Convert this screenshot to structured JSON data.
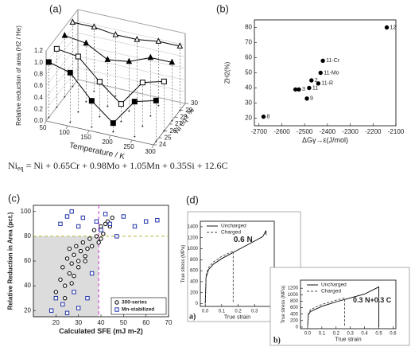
{
  "chart_data": [
    {
      "type": "scatter3d",
      "label": "(a)",
      "ylabel": "Relative reduction of area (H2 / He)",
      "xlabel": "Temperature / K",
      "zlabel": "Ni eq / %",
      "xlim": [
        50,
        300
      ],
      "xticks": [
        50,
        100,
        150,
        200,
        250,
        300
      ],
      "zlim": [
        24,
        30
      ],
      "zticks": [
        24,
        25,
        26,
        27,
        28,
        29,
        30
      ],
      "ylim": [
        0,
        1.2
      ],
      "yticks": [
        {
          "value": 0,
          "label": "0.0"
        },
        0.2,
        0.4,
        0.6,
        0.8,
        {
          "value": 1,
          "label": "1.0"
        },
        1.2
      ],
      "series": [
        {
          "marker": "square",
          "filled": true,
          "color": "#000",
          "x": [
            50,
            100,
            150,
            200,
            250,
            300
          ],
          "z": [
            24.5,
            24.5,
            24.5,
            24.5,
            24.5,
            24.5
          ],
          "values": [
            0.95,
            0.85,
            0.45,
            0.15,
            0.6,
            0.7
          ]
        },
        {
          "marker": "square",
          "filled": false,
          "color": "#000",
          "x": [
            50,
            100,
            150,
            200,
            250,
            300
          ],
          "z": [
            26,
            26,
            26,
            26,
            26,
            26
          ],
          "values": [
            1.0,
            0.95,
            0.6,
            0.3,
            0.75,
            0.85
          ]
        },
        {
          "marker": "triangle",
          "filled": true,
          "color": "#000",
          "x": [
            50,
            100,
            150,
            200,
            250,
            300
          ],
          "z": [
            27.5,
            27.5,
            27.5,
            27.5,
            27.5,
            27.5
          ],
          "values": [
            1.05,
            1.0,
            0.8,
            0.85,
            1.0,
            1.0
          ]
        },
        {
          "marker": "triangle",
          "filled": false,
          "color": "#000",
          "x": [
            50,
            100,
            150,
            200,
            250,
            300
          ],
          "z": [
            29,
            29,
            29,
            29,
            29,
            29
          ],
          "values": [
            1.1,
            1.1,
            1.05,
            1.05,
            1.1,
            1.1
          ]
        }
      ]
    },
    {
      "type": "scatter",
      "label": "(b)",
      "xlabel": "ΔGγ→ε(J/mol)",
      "ylabel": "ZH2(%)",
      "marker": "circle",
      "filled": true,
      "color": "#000",
      "x": [
        -2680,
        -2490,
        -2540,
        -2525,
        -2480,
        -2470,
        -2440,
        -2430,
        -2420,
        -2140
      ],
      "values": [
        21,
        33,
        39,
        39,
        40,
        45,
        43,
        50,
        58,
        80
      ],
      "point_labels": [
        "8",
        "9",
        null,
        "3",
        "11",
        "2",
        "11-R",
        "11-Mo",
        "11-Cr",
        "12"
      ],
      "xlim": [
        -2720,
        -2100
      ],
      "xticks": [
        -2700,
        -2600,
        -2500,
        -2400,
        -2300,
        -2200,
        -2100
      ],
      "ylim": [
        15,
        85
      ],
      "yticks": [
        20,
        30,
        40,
        50,
        60,
        70,
        80
      ]
    },
    {
      "type": "scatter",
      "label": "(c)",
      "xlabel": "Calculated SFE (mJ m-2)",
      "ylabel": "Relative Reduction in Area (pct.)",
      "xlim": [
        10,
        70
      ],
      "xticks": [
        20,
        30,
        40,
        50,
        60,
        70
      ],
      "ylim": [
        15,
        105
      ],
      "yticks": [
        20,
        40,
        60,
        80,
        100
      ],
      "reference_lines": {
        "x": 39,
        "y": 80,
        "x_color": "#cc33cc",
        "y_color": "#b5b53a"
      },
      "shade": "#dcdcdc",
      "legend": "lower right",
      "series": [
        {
          "name": "300-series",
          "marker": "circle",
          "filled": false,
          "color": "#000",
          "x": [
            20,
            22,
            23,
            24,
            25,
            26,
            26,
            27,
            28,
            28,
            29,
            30,
            30,
            31,
            32,
            33,
            34,
            35,
            36,
            37,
            38,
            39,
            40,
            40,
            41,
            42,
            43,
            44,
            45,
            24,
            27,
            33
          ],
          "values": [
            35,
            45,
            55,
            40,
            62,
            50,
            70,
            58,
            65,
            48,
            72,
            60,
            55,
            68,
            75,
            64,
            70,
            78,
            72,
            85,
            80,
            75,
            78,
            88,
            82,
            90,
            92,
            88,
            95,
            30,
            42,
            60
          ]
        },
        {
          "name": "Mn-stabilized",
          "marker": "square",
          "filled": false,
          "color": "#2233aa",
          "x": [
            18,
            20,
            22,
            23,
            25,
            27,
            28,
            30,
            32,
            34,
            36,
            38,
            40,
            42,
            44,
            47,
            50,
            55,
            60,
            65,
            25,
            30
          ],
          "values": [
            20,
            30,
            90,
            25,
            96,
            100,
            35,
            88,
            95,
            30,
            50,
            92,
            85,
            98,
            90,
            80,
            96,
            88,
            92,
            93,
            18,
            22
          ]
        }
      ]
    },
    {
      "type": "line",
      "panel_label": "(d)",
      "sub_label": "a)",
      "annotation": "0.6 N",
      "xlabel": "True strain",
      "ylabel": "True stress (MPa)",
      "legend": "upper left",
      "xlim": [
        -0.03,
        0.42
      ],
      "xticks": [
        {
          "value": 0,
          "label": "0.0"
        },
        0.1,
        0.2,
        0.3
      ],
      "ylim": [
        -50,
        1500
      ],
      "yticks": [
        0,
        200,
        400,
        600,
        800,
        1000,
        1200,
        1400
      ],
      "series": [
        {
          "name": "Uncharged",
          "color": "#000",
          "dash": false,
          "x": [
            0,
            0.005,
            0.02,
            0.05,
            0.1,
            0.15,
            0.2,
            0.25,
            0.3,
            0.35,
            0.37,
            0.37
          ],
          "values": [
            0,
            480,
            620,
            720,
            820,
            900,
            980,
            1060,
            1140,
            1220,
            1330,
            1250
          ]
        },
        {
          "name": "Charged",
          "color": "#444",
          "dash": true,
          "x": [
            0,
            0.005,
            0.02,
            0.05,
            0.1,
            0.15,
            0.17,
            0.17
          ],
          "values": [
            0,
            520,
            660,
            760,
            860,
            930,
            960,
            0
          ]
        }
      ]
    },
    {
      "type": "line",
      "sub_label": "b)",
      "annotation": "0.3 N+0.3 C",
      "xlabel": "True strain",
      "ylabel": "True stress (MPa)",
      "legend": "upper left",
      "xlim": [
        -0.05,
        0.62
      ],
      "xticks": [
        {
          "value": 0,
          "label": "0.0"
        },
        0.1,
        0.2,
        0.3,
        0.4,
        0.5,
        0.6
      ],
      "ylim": [
        -50,
        1450
      ],
      "yticks": [
        0,
        200,
        400,
        600,
        800,
        1000,
        1200
      ],
      "series": [
        {
          "name": "Uncharged",
          "color": "#000",
          "dash": false,
          "x": [
            0,
            0.005,
            0.02,
            0.1,
            0.2,
            0.3,
            0.4,
            0.5,
            0.5
          ],
          "values": [
            0,
            380,
            480,
            640,
            780,
            900,
            1020,
            1240,
            0
          ]
        },
        {
          "name": "Charged",
          "color": "#444",
          "dash": true,
          "x": [
            0,
            0.005,
            0.02,
            0.1,
            0.2,
            0.26,
            0.26
          ],
          "values": [
            0,
            420,
            540,
            700,
            830,
            900,
            0
          ]
        }
      ]
    }
  ],
  "equation": {
    "lhs": "Ni",
    "subscript": "eq",
    "rhs": "= Ni + 0.65Cr + 0.98Mo + 1.05Mn + 0.35Si + 12.6C"
  }
}
